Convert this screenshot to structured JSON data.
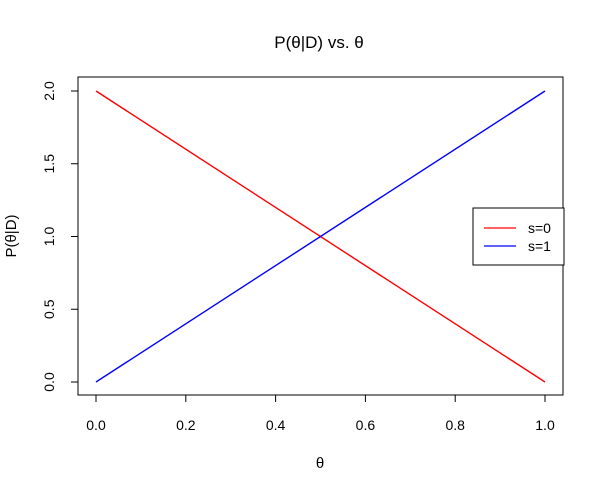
{
  "chart_data": {
    "type": "line",
    "title": "P(θ|D)  vs.  θ",
    "xlabel": "θ",
    "ylabel": "P(θ|D)",
    "xlim": [
      0.0,
      1.0
    ],
    "ylim": [
      0.0,
      2.0
    ],
    "x_ticks": [
      "0.0",
      "0.2",
      "0.4",
      "0.6",
      "0.8",
      "1.0"
    ],
    "y_ticks": [
      "0.0",
      "0.5",
      "1.0",
      "1.5",
      "2.0"
    ],
    "grid": false,
    "legend_position": "right",
    "series": [
      {
        "name": "s=0",
        "color": "#ff0000",
        "x": [
          0.0,
          1.0
        ],
        "y": [
          2.0,
          0.0
        ]
      },
      {
        "name": "s=1",
        "color": "#0000ff",
        "x": [
          0.0,
          1.0
        ],
        "y": [
          0.0,
          2.0
        ]
      }
    ]
  }
}
